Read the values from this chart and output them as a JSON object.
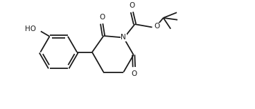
{
  "background_color": "#ffffff",
  "line_color": "#1a1a1a",
  "line_width": 1.3,
  "font_size": 7.5,
  "figsize": [
    3.68,
    1.58
  ],
  "dpi": 100,
  "xlim": [
    0,
    10.0
  ],
  "ylim": [
    0,
    4.3
  ]
}
